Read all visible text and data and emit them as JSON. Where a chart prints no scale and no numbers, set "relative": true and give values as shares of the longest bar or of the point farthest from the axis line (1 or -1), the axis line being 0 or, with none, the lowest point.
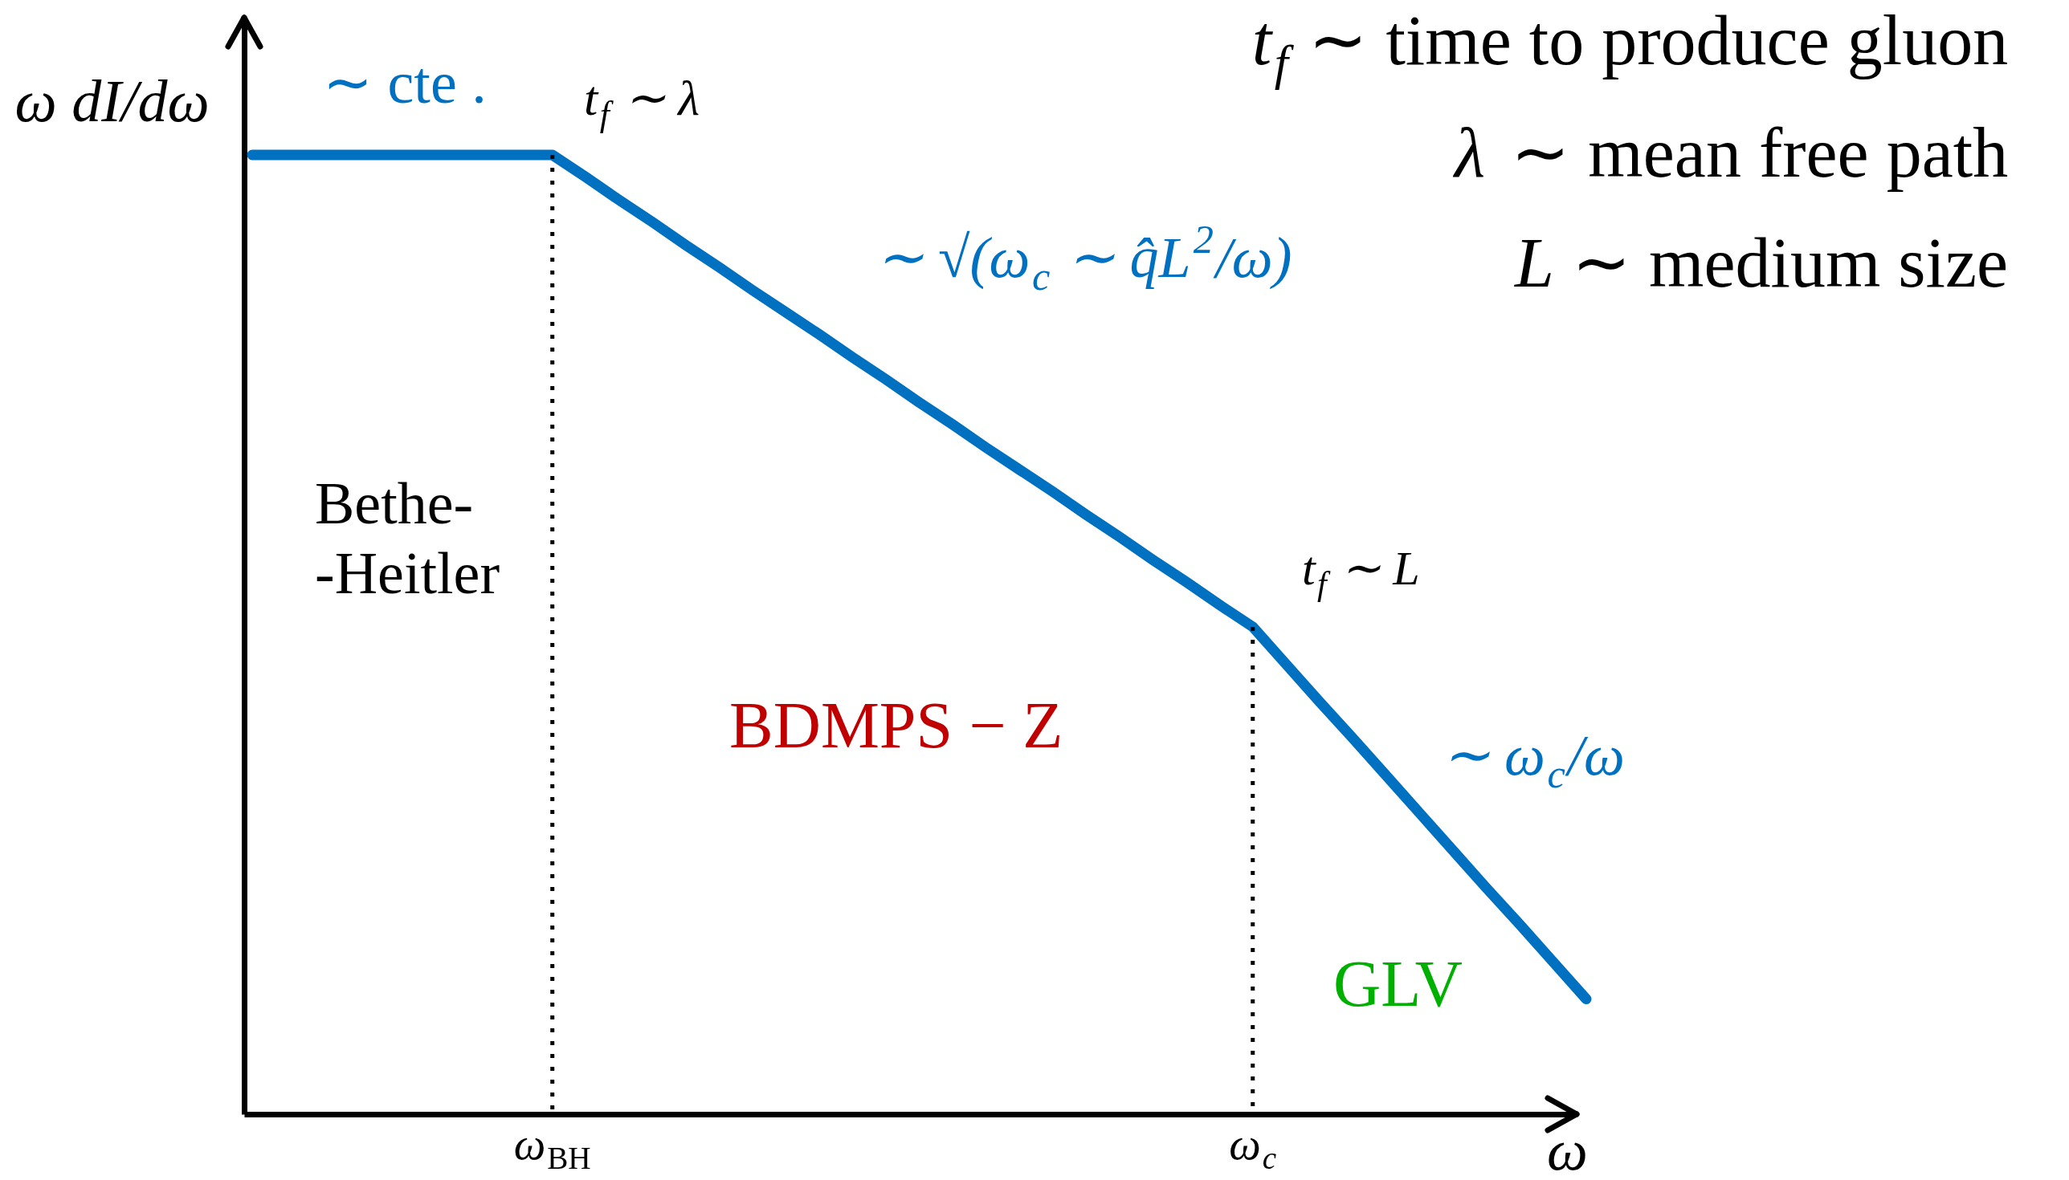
{
  "chart_data": {
    "type": "line",
    "relative": true,
    "xlabel": "ω",
    "ylabel": "ω dI/dω",
    "categories": [
      null,
      null,
      null,
      null,
      null,
      null,
      null,
      null,
      null,
      "ω$_{BH}$",
      null,
      null,
      null,
      null,
      null,
      null,
      null,
      null,
      null,
      null,
      null,
      null,
      null,
      null,
      null,
      null,
      null,
      null,
      null,
      null,
      "ω$_{c}$",
      null,
      null,
      null,
      null,
      null,
      null,
      null,
      null,
      null,
      null
    ],
    "color": "#0070c0",
    "values": [
      1.0,
      1.0,
      1.0,
      1.0,
      1.0,
      1.0,
      1.0,
      1.0,
      1.0,
      1.0,
      0.977,
      0.953,
      0.93,
      0.906,
      0.883,
      0.859,
      0.836,
      0.813,
      0.789,
      0.766,
      0.742,
      0.719,
      0.695,
      0.672,
      0.649,
      0.625,
      0.602,
      0.578,
      0.555,
      0.531,
      0.508,
      0.469,
      0.43,
      0.392,
      0.353,
      0.314,
      0.275,
      0.236,
      0.198,
      0.159,
      0.12
    ],
    "ref_lines": [
      {
        "axis": "x",
        "value": "ω$_{BH}$",
        "color": "#000000",
        "line_style": "dotted"
      },
      {
        "axis": "x",
        "value": "ω$_{c}$",
        "color": "#000000",
        "line_style": "dotted"
      }
    ],
    "annotations": [
      "∼ cte .",
      "t$_{f}$ ∼ λ",
      "t$_{f}$ ∼ time to produce gluon",
      "λ ∼ mean free path",
      "L ∼ medium size",
      "∼ √(ω$_{c}$ ∼ q̂L$^{2}$/ω)",
      "Bethe-\n-Heitler",
      "BDMPS − Z",
      "t$_{f}$ ∼ L",
      "∼ ω$_{c}$/ω",
      "GLV"
    ]
  }
}
